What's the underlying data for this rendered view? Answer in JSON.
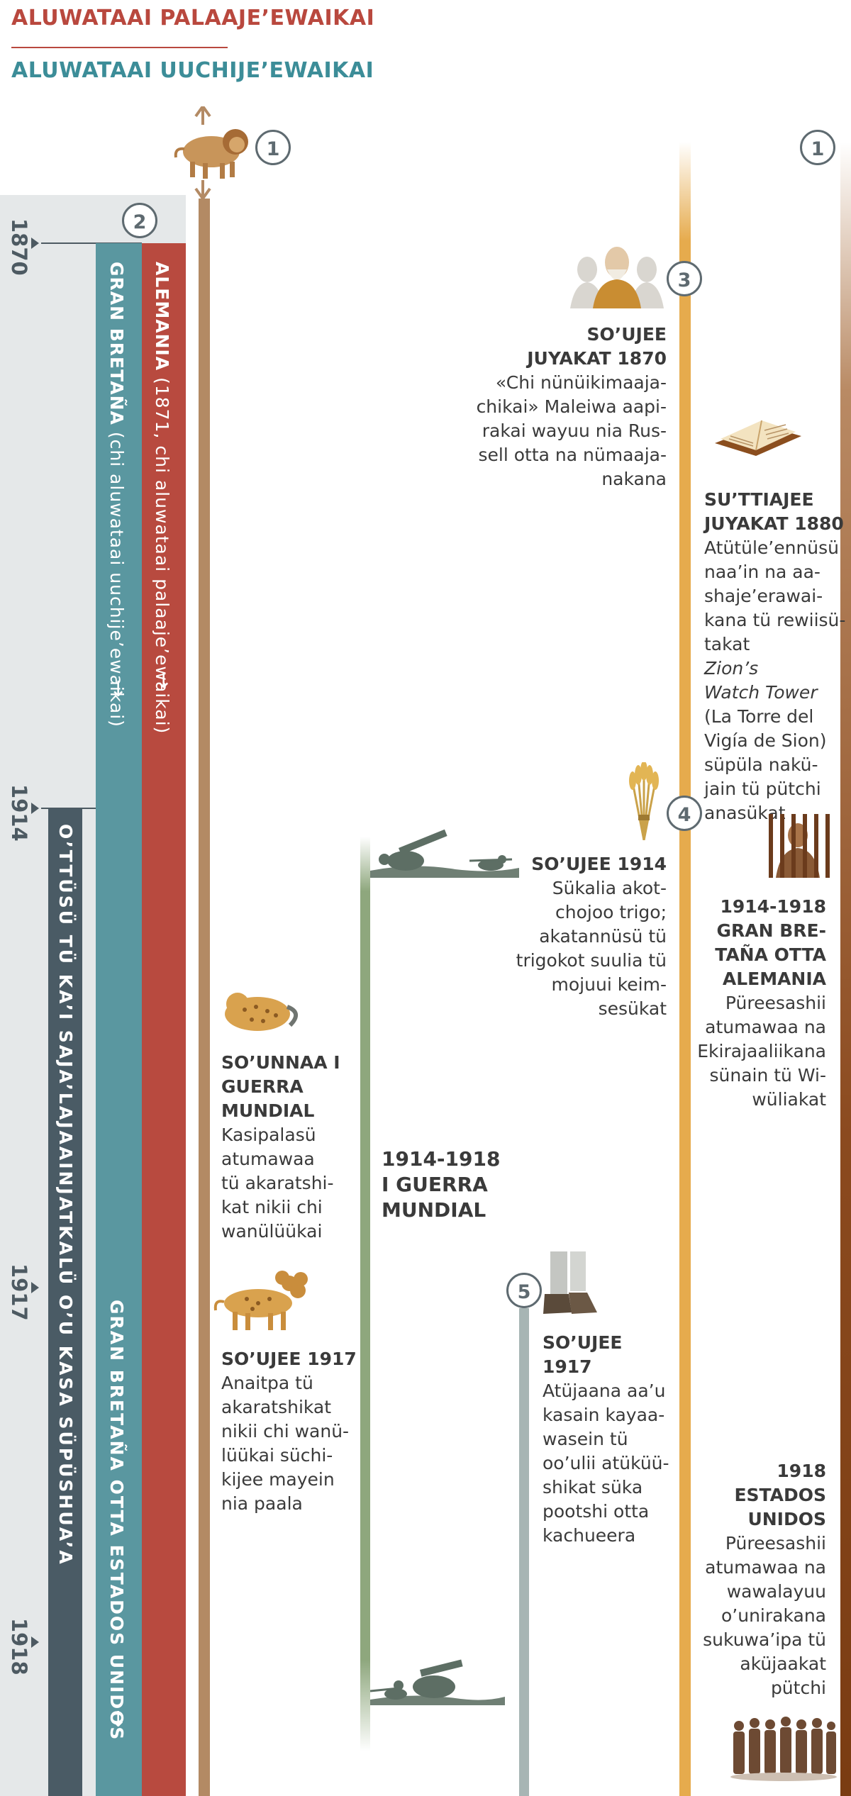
{
  "header": {
    "south": "ALUWATAAI PALAAJE’EWAIKAI",
    "north": "ALUWATAAI UUCHIJE’EWAIKAI"
  },
  "years": [
    "1870",
    "1914",
    "1917",
    "1918"
  ],
  "numbers": [
    "1",
    "2",
    "3",
    "4",
    "5",
    "1"
  ],
  "bars": {
    "red": {
      "bold": "ALEMANIA",
      "rest": " (1871, chi aluwataai palaaje’ewaikai)",
      "arrow": "↓"
    },
    "teal": {
      "bold": "GRAN BRETAÑA",
      "rest": " (chi aluwataai uuchije’ewaikai)",
      "arrow": "↓"
    },
    "teal_lower": {
      "text": "GRAN BRETAÑA OTTA ESTADOS UNIDOS",
      "arrow": "↓"
    },
    "dark": {
      "text": "O’TTÜSÜ TÜ KA’I SAJA’LAJAAINJATKALÜ O’U KASA SÜPÜSHUA’A"
    }
  },
  "events": {
    "e1870": {
      "title1": "SO’UJEE",
      "title2": "JUYAKAT 1870",
      "lines": [
        "«Chi nünüikimaaja-",
        "chikai» Maleiwa aapi-",
        "rakai wayuu nia Rus-",
        "sell otta na nümaaja-",
        "nakana"
      ]
    },
    "e1880": {
      "title1": "SU’TTIAJEE",
      "title2": "JUYAKAT 1880",
      "lines": [
        "Atütüle’ennüsü",
        "naa’in na aa-",
        "shaje’erawai-",
        "kana tü rewiisü-",
        "takat"
      ],
      "italic1": "Zion’s",
      "italic2": "Watch Tower",
      "lines2": [
        "(La Torre del",
        "Vigía de Sion)",
        "süpüla nakü-",
        "jain tü pütchi",
        "anasükat"
      ]
    },
    "e1914": {
      "title": "SO’UJEE 1914",
      "lines": [
        "Sükalia akot-",
        "chojoo trigo;",
        "akatannüsü tü",
        "trigokot suulia tü",
        "mojuui keim-",
        "sesükat"
      ]
    },
    "e1914_1918_right": {
      "title1": "1914-1918",
      "title2": "GRAN BRE-",
      "title3": "TAÑA OTTA",
      "title4": "ALEMANIA",
      "lines": [
        "Püreesashii",
        "atumawaa na",
        "Ekirajaaliikana",
        "sünain tü Wi-",
        "wüliakat"
      ]
    },
    "ww1_left": {
      "title1": "SO’UNNAA I",
      "title2": "GUERRA",
      "title3": "MUNDIAL",
      "lines": [
        "Kasipalasü",
        "atumawaa",
        "tü akaratshi-",
        "kat nikii chi",
        "wanülüükai"
      ]
    },
    "war": {
      "line1": "1914-1918",
      "line2": "I GUERRA",
      "line3": "MUNDIAL"
    },
    "e1917_left": {
      "title": "SO’UJEE 1917",
      "lines": [
        "Anaitpa tü",
        "akaratshikat",
        "nikii chi wanü-",
        "lüükai süchi-",
        "kijee mayein",
        "nia paala"
      ]
    },
    "e1917_mid": {
      "title": "SO’UJEE 1917",
      "lines": [
        "Atüjaana aa’u",
        "kasain kayaa-",
        "wasein tü",
        "oo’ulii atüküü-",
        "shikat süka",
        "pootshi otta",
        "kachueera"
      ]
    },
    "e1918": {
      "title1": "1918",
      "title2": "ESTADOS",
      "title3": "UNIDOS",
      "lines": [
        "Püreesashii",
        "atumawaa na",
        "wawalayuu",
        "o’unirakana",
        "sukuwa’ipa tü",
        "aküjaakat",
        "pütchi"
      ]
    }
  },
  "icons": [
    "lion-icon",
    "elder-portrait-icon",
    "bible-icon",
    "wheat-icon",
    "prisoner-icon",
    "soldiers-icon",
    "leopard-icon",
    "four-headed-leopard-icon",
    "statue-feet-icon",
    "crowd-icon"
  ]
}
